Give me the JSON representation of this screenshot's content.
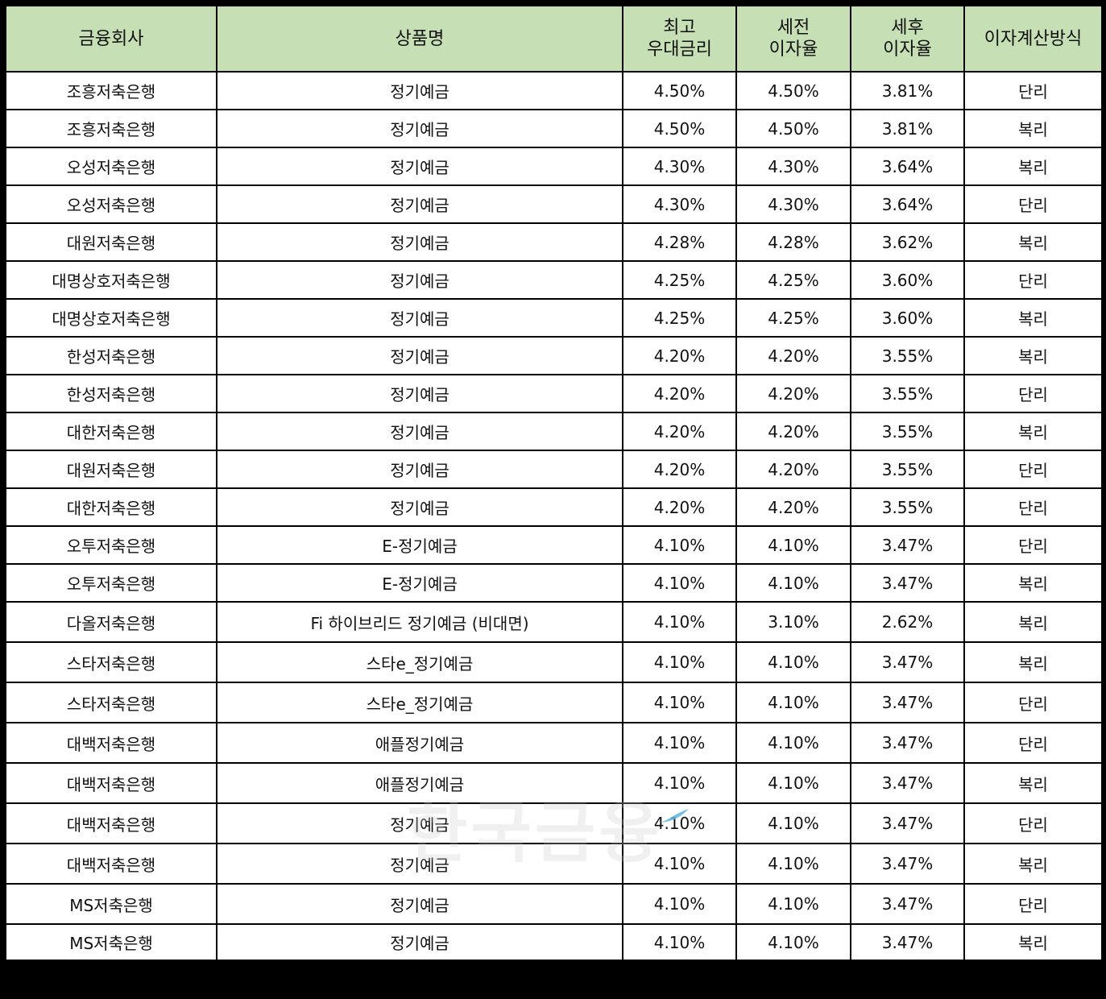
{
  "table": {
    "headers": [
      {
        "line1": "금융회사",
        "line2": ""
      },
      {
        "line1": "상품명",
        "line2": ""
      },
      {
        "line1": "최고",
        "line2": "우대금리"
      },
      {
        "line1": "세전",
        "line2": "이자율"
      },
      {
        "line1": "세후",
        "line2": "이자율"
      },
      {
        "line1": "이자계산방식",
        "line2": ""
      }
    ],
    "rows": [
      [
        "조흥저축은행",
        "정기예금",
        "4.50%",
        "4.50%",
        "3.81%",
        "단리"
      ],
      [
        "조흥저축은행",
        "정기예금",
        "4.50%",
        "4.50%",
        "3.81%",
        "복리"
      ],
      [
        "오성저축은행",
        "정기예금",
        "4.30%",
        "4.30%",
        "3.64%",
        "복리"
      ],
      [
        "오성저축은행",
        "정기예금",
        "4.30%",
        "4.30%",
        "3.64%",
        "단리"
      ],
      [
        "대원저축은행",
        "정기예금",
        "4.28%",
        "4.28%",
        "3.62%",
        "복리"
      ],
      [
        "대명상호저축은행",
        "정기예금",
        "4.25%",
        "4.25%",
        "3.60%",
        "단리"
      ],
      [
        "대명상호저축은행",
        "정기예금",
        "4.25%",
        "4.25%",
        "3.60%",
        "복리"
      ],
      [
        "한성저축은행",
        "정기예금",
        "4.20%",
        "4.20%",
        "3.55%",
        "복리"
      ],
      [
        "한성저축은행",
        "정기예금",
        "4.20%",
        "4.20%",
        "3.55%",
        "단리"
      ],
      [
        "대한저축은행",
        "정기예금",
        "4.20%",
        "4.20%",
        "3.55%",
        "복리"
      ],
      [
        "대원저축은행",
        "정기예금",
        "4.20%",
        "4.20%",
        "3.55%",
        "단리"
      ],
      [
        "대한저축은행",
        "정기예금",
        "4.20%",
        "4.20%",
        "3.55%",
        "단리"
      ],
      [
        "오투저축은행",
        "E-정기예금",
        "4.10%",
        "4.10%",
        "3.47%",
        "단리"
      ],
      [
        "오투저축은행",
        "E-정기예금",
        "4.10%",
        "4.10%",
        "3.47%",
        "복리"
      ],
      [
        "다올저축은행",
        "Fi 하이브리드 정기예금 (비대면)",
        "4.10%",
        "3.10%",
        "2.62%",
        "복리"
      ],
      [
        "스타저축은행",
        "스타e_정기예금",
        "4.10%",
        "4.10%",
        "3.47%",
        "복리"
      ],
      [
        "스타저축은행",
        "스타e_정기예금",
        "4.10%",
        "4.10%",
        "3.47%",
        "단리"
      ],
      [
        "대백저축은행",
        "애플정기예금",
        "4.10%",
        "4.10%",
        "3.47%",
        "단리"
      ],
      [
        "대백저축은행",
        "애플정기예금",
        "4.10%",
        "4.10%",
        "3.47%",
        "복리"
      ],
      [
        "대백저축은행",
        "정기예금",
        "4.10%",
        "4.10%",
        "3.47%",
        "단리"
      ],
      [
        "대백저축은행",
        "정기예금",
        "4.10%",
        "4.10%",
        "3.47%",
        "복리"
      ],
      [
        "MS저축은행",
        "정기예금",
        "4.10%",
        "4.10%",
        "3.47%",
        "단리"
      ],
      [
        "MS저축은행",
        "정기예금",
        "4.10%",
        "4.10%",
        "3.47%",
        "복리"
      ]
    ]
  },
  "watermark": {
    "text": "한국금융"
  },
  "colors": {
    "header_bg": "#c6dfb4",
    "border": "#000000",
    "cell_bg": "#ffffff",
    "swoosh": "#5ab4e0"
  }
}
